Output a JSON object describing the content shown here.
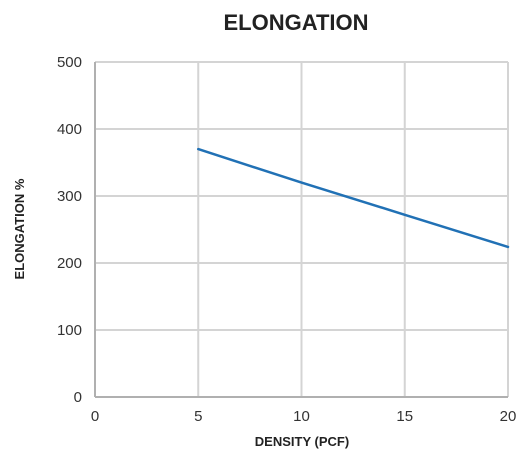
{
  "chart_data": {
    "type": "line",
    "title": "ELONGATION",
    "xlabel": "DENSITY (PCF)",
    "ylabel": "ELONGATION %",
    "xlim": [
      0,
      20
    ],
    "ylim": [
      0,
      500
    ],
    "xticks": [
      0,
      5,
      10,
      15,
      20
    ],
    "yticks": [
      0,
      100,
      200,
      300,
      400,
      500
    ],
    "grid": true,
    "series": [
      {
        "x": [
          5,
          10,
          15,
          20
        ],
        "y": [
          370,
          320,
          272,
          224
        ]
      }
    ],
    "colors": {
      "line": "#2171b5",
      "grid": "#d4d4d4",
      "axis": "#b0b0b0"
    }
  }
}
